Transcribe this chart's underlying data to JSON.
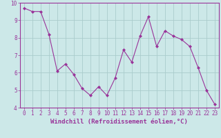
{
  "x": [
    0,
    1,
    2,
    3,
    4,
    5,
    6,
    7,
    8,
    9,
    10,
    11,
    12,
    13,
    14,
    15,
    16,
    17,
    18,
    19,
    20,
    21,
    22,
    23
  ],
  "y": [
    9.7,
    9.5,
    9.5,
    8.2,
    6.1,
    6.5,
    5.9,
    5.1,
    4.7,
    5.2,
    4.7,
    5.7,
    7.3,
    6.6,
    8.1,
    9.2,
    7.5,
    8.4,
    8.1,
    7.9,
    7.5,
    6.3,
    5.0,
    4.2
  ],
  "line_color": "#993399",
  "marker": "D",
  "marker_size": 2,
  "bg_color": "#cce8e8",
  "grid_color": "#aacccc",
  "xlabel": "Windchill (Refroidissement éolien,°C)",
  "xlabel_color": "#993399",
  "tick_color": "#993399",
  "axis_color": "#993399",
  "ylim": [
    4,
    10
  ],
  "xlim": [
    -0.5,
    23.5
  ],
  "yticks": [
    4,
    5,
    6,
    7,
    8,
    9,
    10
  ],
  "xticks": [
    0,
    1,
    2,
    3,
    4,
    5,
    6,
    7,
    8,
    9,
    10,
    11,
    12,
    13,
    14,
    15,
    16,
    17,
    18,
    19,
    20,
    21,
    22,
    23
  ],
  "tick_fontsize": 5.5,
  "xlabel_fontsize": 6.5
}
